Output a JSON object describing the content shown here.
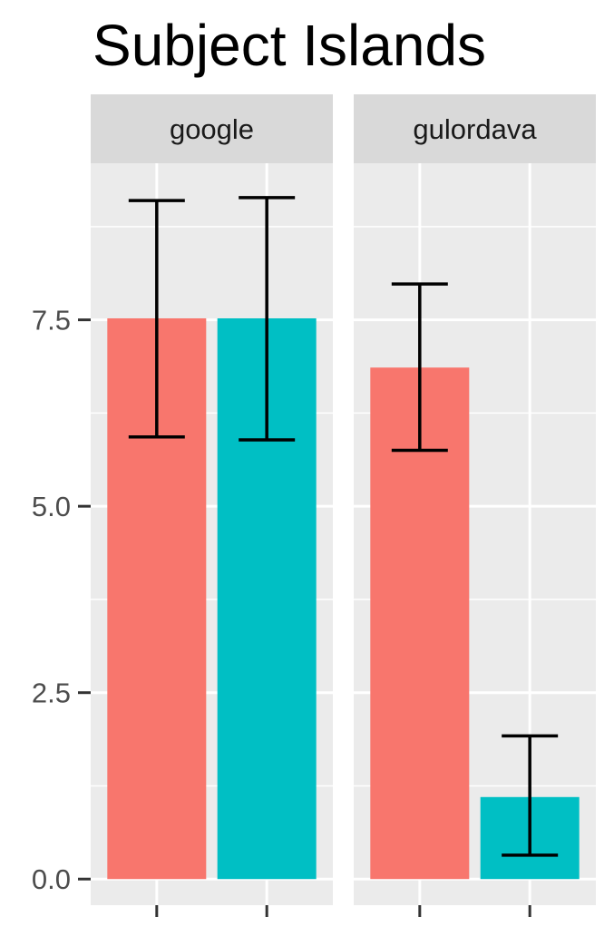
{
  "chart_data": {
    "type": "bar",
    "title": "Subject Islands",
    "facets": [
      "google",
      "gulordava"
    ],
    "series": [
      {
        "color": "#F8766D",
        "values": [
          7.52,
          6.86
        ],
        "error_low": [
          5.93,
          5.75
        ],
        "error_high": [
          9.1,
          7.98
        ]
      },
      {
        "color": "#00BFC4",
        "values": [
          7.52,
          1.1
        ],
        "error_low": [
          5.89,
          0.32
        ],
        "error_high": [
          9.14,
          1.92
        ]
      }
    ],
    "ylim": [
      -0.35,
      9.6
    ],
    "yticks": [
      0.0,
      2.5,
      5.0,
      7.5
    ],
    "ytick_labels": [
      "0.0",
      "2.5",
      "5.0",
      "7.5"
    ],
    "xlabel": "",
    "ylabel": "",
    "grid": true,
    "legend": "none"
  }
}
